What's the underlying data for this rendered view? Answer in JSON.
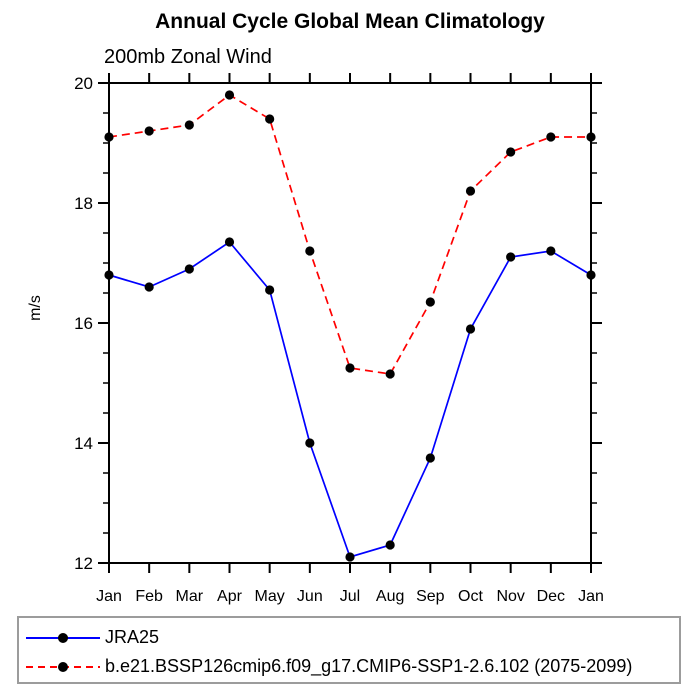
{
  "title": "Annual Cycle Global Mean Climatology",
  "subtitle": "200mb Zonal Wind",
  "chart_data": {
    "type": "line",
    "x_categories": [
      "Jan",
      "Feb",
      "Mar",
      "Apr",
      "May",
      "Jun",
      "Jul",
      "Aug",
      "Sep",
      "Oct",
      "Nov",
      "Dec",
      "Jan"
    ],
    "ylabel": "m/s",
    "ylim": [
      12,
      20
    ],
    "y_major_ticks": [
      12,
      14,
      16,
      18,
      20
    ],
    "y_minor_step": 0.5,
    "grid": false,
    "legend_position": "bottom-left-box",
    "series": [
      {
        "name": "JRA25",
        "color": "#0000ff",
        "line_style": "solid",
        "marker": "circle",
        "marker_color": "#000000",
        "values": [
          16.8,
          16.6,
          16.9,
          17.35,
          16.55,
          14.0,
          12.1,
          12.3,
          13.75,
          15.9,
          17.1,
          17.2,
          16.8
        ]
      },
      {
        "name": "b.e21.BSSP126cmip6.f09_g17.CMIP6-SSP1-2.6.102 (2075-2099)",
        "color": "#ff0000",
        "line_style": "dashed",
        "marker": "circle",
        "marker_color": "#000000",
        "values": [
          19.1,
          19.2,
          19.3,
          19.8,
          19.4,
          17.2,
          15.25,
          15.15,
          16.35,
          18.2,
          18.85,
          19.1,
          19.1
        ]
      }
    ]
  }
}
